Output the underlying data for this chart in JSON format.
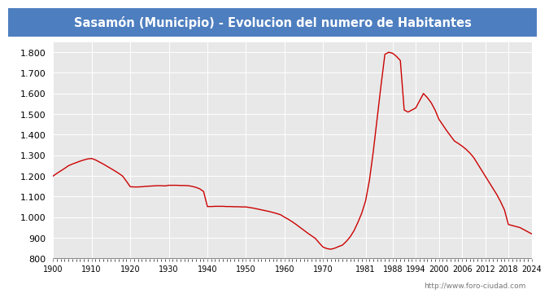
{
  "title": "Sasamón (Municipio) - Evolucion del numero de Habitantes",
  "title_color": "#ffffff",
  "title_bg_color": "#4d7ebf",
  "line_color": "#cc0000",
  "background_color": "#ffffff",
  "plot_bg_color": "#e8e8e8",
  "ylim": [
    800,
    1850
  ],
  "yticks": [
    800,
    900,
    1000,
    1100,
    1200,
    1300,
    1400,
    1500,
    1600,
    1700,
    1800
  ],
  "xticks": [
    1900,
    1910,
    1920,
    1930,
    1940,
    1950,
    1960,
    1970,
    1981,
    1988,
    1994,
    2000,
    2006,
    2012,
    2018,
    2024
  ],
  "watermark": "http://www.foro-ciudad.com",
  "years": [
    1900,
    1901,
    1902,
    1903,
    1904,
    1905,
    1906,
    1907,
    1908,
    1909,
    1910,
    1911,
    1912,
    1913,
    1914,
    1915,
    1916,
    1917,
    1918,
    1919,
    1920,
    1921,
    1922,
    1923,
    1924,
    1925,
    1926,
    1927,
    1928,
    1929,
    1930,
    1931,
    1932,
    1933,
    1934,
    1935,
    1936,
    1937,
    1938,
    1939,
    1940,
    1941,
    1942,
    1943,
    1944,
    1945,
    1946,
    1947,
    1948,
    1949,
    1950,
    1951,
    1952,
    1953,
    1954,
    1955,
    1956,
    1957,
    1958,
    1959,
    1960,
    1961,
    1962,
    1963,
    1964,
    1965,
    1966,
    1967,
    1968,
    1969,
    1970,
    1971,
    1972,
    1973,
    1974,
    1975,
    1976,
    1977,
    1978,
    1979,
    1980,
    1981,
    1982,
    1983,
    1984,
    1985,
    1986,
    1987,
    1988,
    1989,
    1990,
    1991,
    1992,
    1993,
    1994,
    1995,
    1996,
    1997,
    1998,
    1999,
    2000,
    2001,
    2002,
    2003,
    2004,
    2005,
    2006,
    2007,
    2008,
    2009,
    2010,
    2011,
    2012,
    2013,
    2014,
    2015,
    2016,
    2017,
    2018,
    2019,
    2020,
    2021,
    2022,
    2023,
    2024
  ],
  "population": [
    1200,
    1213,
    1225,
    1237,
    1250,
    1258,
    1265,
    1272,
    1278,
    1283,
    1285,
    1278,
    1268,
    1258,
    1247,
    1236,
    1225,
    1213,
    1200,
    1175,
    1148,
    1147,
    1147,
    1148,
    1150,
    1151,
    1152,
    1153,
    1153,
    1152,
    1155,
    1155,
    1155,
    1154,
    1154,
    1153,
    1150,
    1145,
    1138,
    1125,
    1052,
    1052,
    1053,
    1053,
    1053,
    1052,
    1052,
    1051,
    1051,
    1050,
    1050,
    1047,
    1044,
    1040,
    1036,
    1032,
    1028,
    1023,
    1018,
    1012,
    1000,
    990,
    978,
    965,
    951,
    937,
    923,
    910,
    897,
    875,
    855,
    848,
    845,
    850,
    858,
    865,
    883,
    905,
    935,
    975,
    1020,
    1080,
    1180,
    1320,
    1480,
    1640,
    1790,
    1800,
    1795,
    1780,
    1760,
    1520,
    1510,
    1520,
    1530,
    1565,
    1600,
    1580,
    1555,
    1520,
    1475,
    1448,
    1420,
    1395,
    1370,
    1358,
    1345,
    1330,
    1312,
    1290,
    1260,
    1230,
    1200,
    1170,
    1140,
    1110,
    1075,
    1035,
    965,
    960,
    955,
    950,
    940,
    930,
    920
  ]
}
